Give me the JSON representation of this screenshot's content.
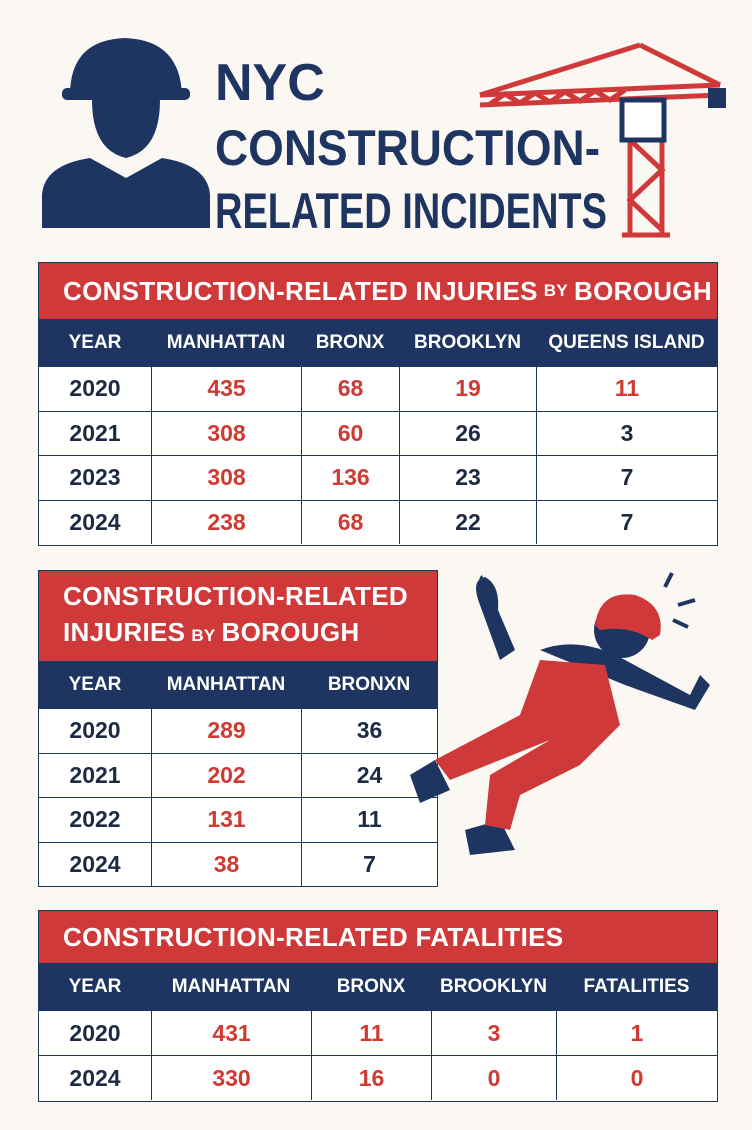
{
  "header": {
    "title_lines": [
      "NYC",
      "CONSTRUCTION-",
      "RELATED INCIDENTS"
    ]
  },
  "table1": {
    "title_parts": [
      "CONSTRUCTION-RELATED INJURIES",
      "BY",
      "BOROUGH"
    ],
    "headers": [
      "YEAR",
      "MANHATTAN",
      "BRONX",
      "BROOKLYN",
      "QUEENS ISLAND"
    ],
    "rows": [
      [
        2020,
        435,
        68,
        19,
        11
      ],
      [
        2021,
        308,
        60,
        26,
        3
      ],
      [
        2023,
        308,
        136,
        23,
        7
      ],
      [
        2024,
        238,
        68,
        22,
        7
      ]
    ]
  },
  "table2": {
    "title_parts": [
      "CONSTRUCTION-RELATED",
      "INJURIES",
      "BY",
      "BOROUGH"
    ],
    "headers": [
      "YEAR",
      "MANHATTAN",
      "BRONXN"
    ],
    "rows": [
      [
        2020,
        289,
        36
      ],
      [
        2021,
        202,
        24
      ],
      [
        2022,
        131,
        11
      ],
      [
        2024,
        38,
        7
      ]
    ]
  },
  "table3": {
    "title": "CONSTRUCTION-RELATED FATALITIES",
    "headers": [
      "YEAR",
      "MANHATTAN",
      "BRONX",
      "BROOKLYN",
      "FATALITIES"
    ],
    "rows": [
      [
        2020,
        431,
        11,
        3,
        1
      ],
      [
        2024,
        330,
        16,
        0,
        0
      ]
    ]
  }
}
